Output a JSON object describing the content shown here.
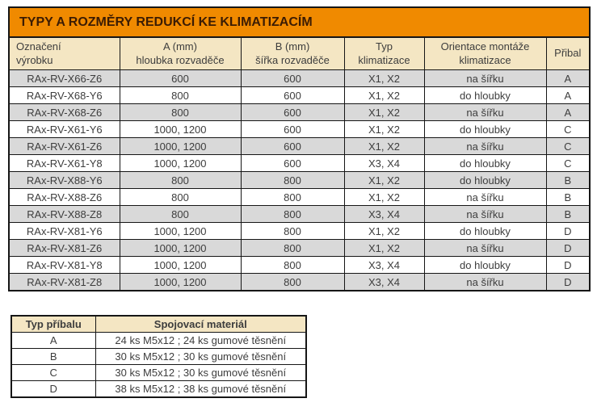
{
  "colors": {
    "title_bg": "#f08a00",
    "title_text": "#3b1c04",
    "header_bg": "#f4e6c3",
    "row_alt_bg": "#d9d9d9",
    "row_bg": "#ffffff",
    "border": "#161616",
    "text": "#3d3d3d"
  },
  "main_table": {
    "title": "TYPY A ROZMĚRY REDUKCÍ KE KLIMATIZACÍM",
    "columns": [
      "Označení\nvýrobku",
      "A (mm)\nhloubka rozvaděče",
      "B (mm)\nšířka rozvaděče",
      "Typ\nklimatizace",
      "Orientace montáže\nklimatizace",
      "Přibal"
    ],
    "rows": [
      [
        "RAx-RV-X66-Z6",
        "600",
        "600",
        "X1, X2",
        "na šířku",
        "A"
      ],
      [
        "RAx-RV-X68-Y6",
        "800",
        "600",
        "X1, X2",
        "do hloubky",
        "A"
      ],
      [
        "RAx-RV-X68-Z6",
        "800",
        "600",
        "X1, X2",
        "na šířku",
        "A"
      ],
      [
        "RAx-RV-X61-Y6",
        "1000, 1200",
        "600",
        "X1, X2",
        "do hloubky",
        "C"
      ],
      [
        "RAx-RV-X61-Z6",
        "1000, 1200",
        "600",
        "X1, X2",
        "na šířku",
        "C"
      ],
      [
        "RAx-RV-X61-Y8",
        "1000, 1200",
        "600",
        "X3, X4",
        "do hloubky",
        "C"
      ],
      [
        "RAx-RV-X88-Y6",
        "800",
        "800",
        "X1, X2",
        "do hloubky",
        "B"
      ],
      [
        "RAx-RV-X88-Z6",
        "800",
        "800",
        "X1, X2",
        "na šířku",
        "B"
      ],
      [
        "RAx-RV-X88-Z8",
        "800",
        "800",
        "X3, X4",
        "na šířku",
        "B"
      ],
      [
        "RAx-RV-X81-Y6",
        "1000, 1200",
        "800",
        "X1, X2",
        "do hloubky",
        "D"
      ],
      [
        "RAx-RV-X81-Z6",
        "1000, 1200",
        "800",
        "X1, X2",
        "na šířku",
        "D"
      ],
      [
        "RAx-RV-X81-Y8",
        "1000, 1200",
        "800",
        "X3, X4",
        "do hloubky",
        "D"
      ],
      [
        "RAx-RV-X81-Z8",
        "1000, 1200",
        "800",
        "X3, X4",
        "na šířku",
        "D"
      ]
    ]
  },
  "accessory_table": {
    "columns": [
      "Typ příbalu",
      "Spojovací materiál"
    ],
    "rows": [
      [
        "A",
        "24 ks M5x12 ; 24 ks gumové těsnění"
      ],
      [
        "B",
        "30 ks M5x12 ; 30 ks gumové těsnění"
      ],
      [
        "C",
        "30 ks M5x12 ; 30 ks gumové těsnění"
      ],
      [
        "D",
        "38 ks M5x12 ; 38 ks gumové těsnění"
      ]
    ]
  }
}
